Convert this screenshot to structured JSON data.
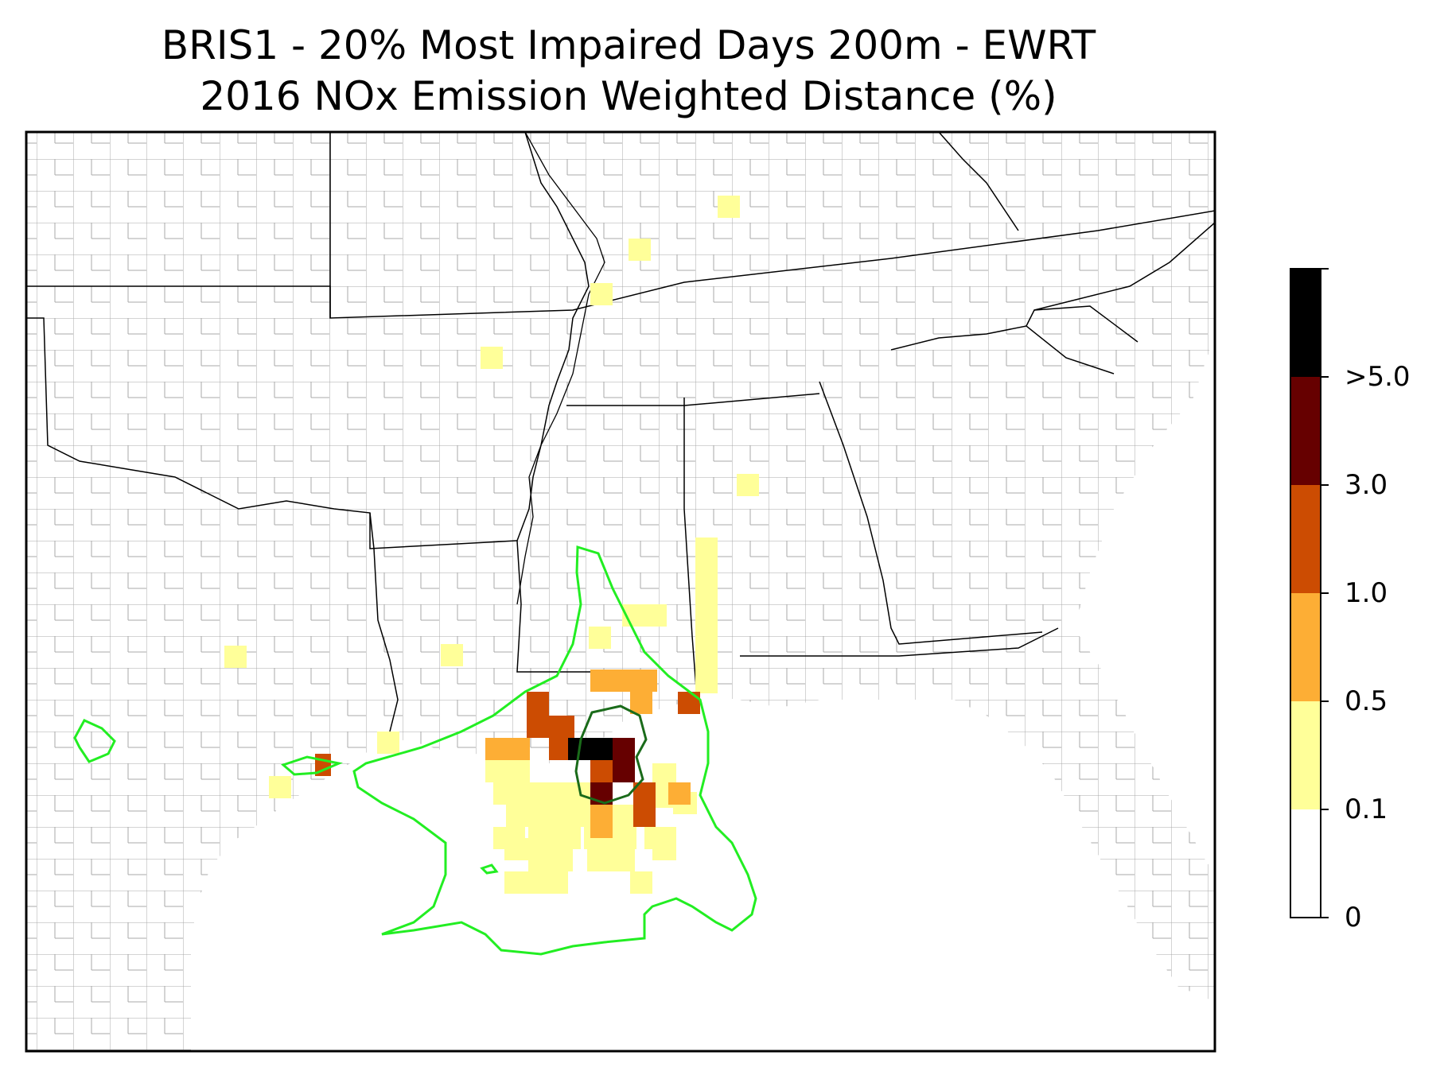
{
  "title_line1": "BRIS1 - 20% Most Impaired Days 200m - EWRT",
  "title_line2": "2016 NOx Emission Weighted Distance (%)",
  "colorbar": {
    "bins": [
      {
        "from": "0",
        "to": "0.1",
        "color": "#ffffff"
      },
      {
        "from": "0.1",
        "to": "0.5",
        "color": "#ffff99"
      },
      {
        "from": "0.5",
        "to": "1.0",
        "color": "#fdae35"
      },
      {
        "from": "1.0",
        "to": "3.0",
        "color": "#cc4c02"
      },
      {
        "from": "3.0",
        "to": ">5.0",
        "color": "#660000"
      },
      {
        "from": ">5.0",
        "to": "",
        "color": "#000000"
      }
    ],
    "tick_labels": [
      "0",
      "0.1",
      "0.5",
      "1.0",
      "3.0",
      ">5.0"
    ]
  },
  "overlay_colors": {
    "light_contour": "#22ee22",
    "dark_contour": "#1a6b1a",
    "county_lines": "#a0a0a0",
    "state_lines": "#000000"
  }
}
